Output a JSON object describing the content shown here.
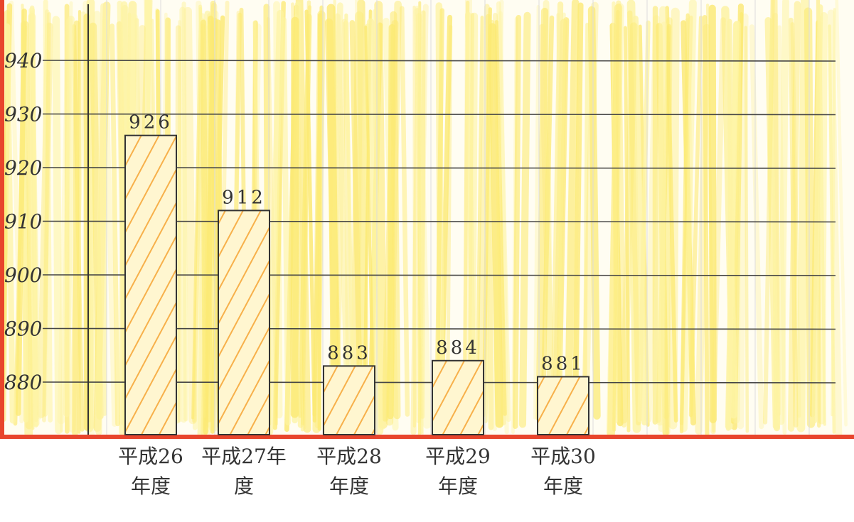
{
  "chart_data": {
    "type": "bar",
    "categories": [
      [
        "平成26",
        "年度"
      ],
      [
        "平成27年",
        "度"
      ],
      [
        "平成28",
        "年度"
      ],
      [
        "平成29",
        "年度"
      ],
      [
        "平成30",
        "年度"
      ]
    ],
    "values": [
      926,
      912,
      883,
      884,
      881
    ],
    "value_labels": [
      "926",
      "912",
      "883",
      "884",
      "881"
    ],
    "yticks": [
      880,
      890,
      900,
      910,
      920,
      930,
      940
    ],
    "ytick_labels": [
      "880",
      "890",
      "900",
      "910",
      "920",
      "930",
      "940"
    ],
    "ylim": [
      872,
      948
    ],
    "title": "",
    "xlabel": "",
    "ylabel": "",
    "grid": true,
    "bar_hatch": true
  },
  "colors": {
    "paper": "#fffdf2",
    "crayon_yellow": "#fbe34a",
    "crayon_light": "#fdf08a",
    "hatch_orange": "#f6a93b",
    "bar_fill": "#fff6d0",
    "border_red": "#e8452c",
    "ink": "#333333",
    "grid_line": "#444444",
    "faint_grid": "#dcdcdc"
  }
}
